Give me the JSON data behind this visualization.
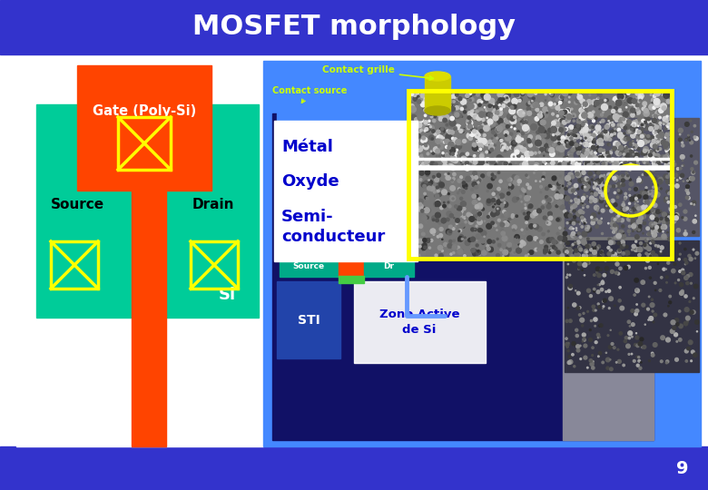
{
  "title": "MOSFET morphology",
  "title_color": "#FFFFFF",
  "title_bg": "#3333CC",
  "bg_color": "#FFFFFF",
  "bottom_bar_color": "#3333CC",
  "gate_color": "#FF4400",
  "gate_label": "Gate (Poly-Si)",
  "source_drain_color": "#00CC99",
  "source_label": "Source",
  "drain_label": "Drain",
  "si_label": "Si",
  "cross_color": "#FFFF00",
  "metal_label": "Métal",
  "oxide_label": "Oxyde",
  "semi_label": "Semi-\nconducteur",
  "label_color": "#0000CC",
  "right_panel_color": "#4488FF",
  "dark_navy": "#111166",
  "gray_color": "#888899",
  "contact_grille_label": "Contact grille",
  "contact_source_label": "Contact source",
  "sti_label": "STI",
  "zone_label": "Zone Active\nde Si",
  "page_num": "9"
}
